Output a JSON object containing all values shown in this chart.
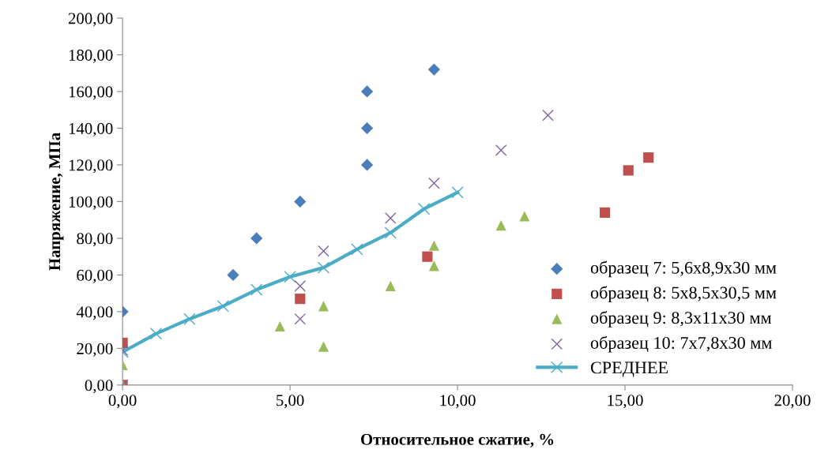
{
  "chart_data": {
    "type": "scatter",
    "xlabel": "Относительное сжатие, %",
    "ylabel": "Напряжение, МПа",
    "xlim": [
      0,
      20
    ],
    "ylim": [
      0,
      200
    ],
    "xticks": [
      {
        "value": 0,
        "label": "0,00"
      },
      {
        "value": 5,
        "label": "5,00"
      },
      {
        "value": 10,
        "label": "10,00"
      },
      {
        "value": 15,
        "label": "15,00"
      },
      {
        "value": 20,
        "label": "20,00"
      }
    ],
    "yticks": [
      {
        "value": 0,
        "label": "0,00"
      },
      {
        "value": 20,
        "label": "20,00"
      },
      {
        "value": 40,
        "label": "40,00"
      },
      {
        "value": 60,
        "label": "60,00"
      },
      {
        "value": 80,
        "label": "80,00"
      },
      {
        "value": 100,
        "label": "100,00"
      },
      {
        "value": 120,
        "label": "120,00"
      },
      {
        "value": 140,
        "label": "140,00"
      },
      {
        "value": 160,
        "label": "160,00"
      },
      {
        "value": 180,
        "label": "180,00"
      },
      {
        "value": 200,
        "label": "200,00"
      }
    ],
    "grid": false,
    "legend": "right",
    "series": [
      {
        "name": "образец 7: 5,6х8,9х30 мм",
        "color": "#4a7ebb",
        "marker": "diamond",
        "x": [
          0,
          3.3,
          4,
          5.3,
          7.3,
          7.3,
          7.3,
          9.3
        ],
        "values": [
          40,
          60,
          80,
          100,
          120,
          140,
          160,
          172
        ]
      },
      {
        "name": "образец 8: 5х8,5х30,5 мм",
        "color": "#c0504d",
        "marker": "square",
        "x": [
          0,
          0,
          5.3,
          9.1,
          14.4,
          15.1,
          15.7
        ],
        "values": [
          0,
          23,
          47,
          70,
          94,
          117,
          124
        ]
      },
      {
        "name": "образец 9: 8,3х11х30 мм",
        "color": "#9bbb59",
        "marker": "triangle",
        "x": [
          0,
          0,
          4.7,
          6,
          6,
          8,
          9.3,
          9.3,
          11.3,
          12
        ],
        "values": [
          0,
          11,
          32,
          21,
          43,
          54,
          76,
          65,
          87,
          92
        ]
      },
      {
        "name": "образец 10: 7х7,8х30 мм",
        "color": "#8064a2",
        "marker": "cross",
        "x": [
          0,
          0,
          5.3,
          5.3,
          6,
          8,
          9.3,
          11.3,
          12.7
        ],
        "values": [
          0,
          19,
          36,
          54,
          73,
          91,
          110,
          128,
          147
        ]
      },
      {
        "name": "СРЕДНЕЕ",
        "type": "line",
        "color": "#4bacc6",
        "marker": "cross",
        "line_style": "solid",
        "x": [
          0,
          1,
          2,
          3,
          4,
          5,
          6,
          7,
          8,
          9,
          10
        ],
        "values": [
          18,
          28,
          36,
          43,
          52,
          59,
          64,
          74,
          83,
          96,
          105
        ]
      }
    ]
  }
}
